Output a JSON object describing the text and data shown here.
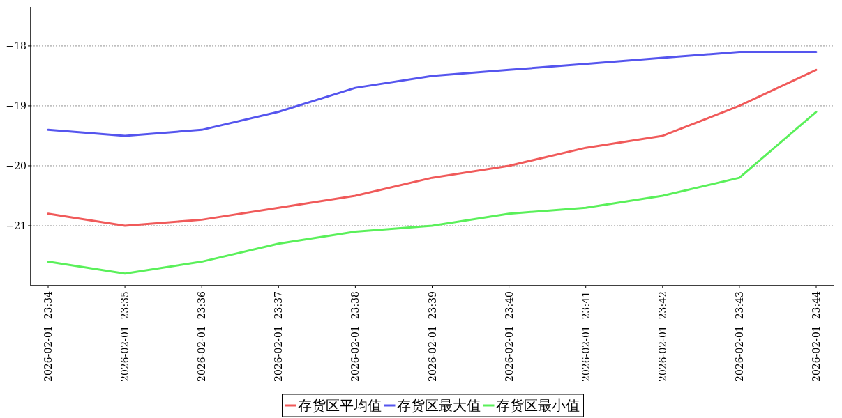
{
  "chart_data": {
    "type": "line",
    "categories": [
      "2026-02-01  23:34",
      "2026-02-01  23:35",
      "2026-02-01  23:36",
      "2026-02-01  23:37",
      "2026-02-01  23:38",
      "2026-02-01  23:39",
      "2026-02-01  23:40",
      "2026-02-01  23:41",
      "2026-02-01  23:42",
      "2026-02-01  23:43",
      "2026-02-01  23:44"
    ],
    "series": [
      {
        "name": "存货区平均值",
        "color": "#f05a5a",
        "values": [
          -20.8,
          -21.0,
          -20.9,
          -20.7,
          -20.5,
          -20.2,
          -20.0,
          -19.7,
          -19.5,
          -19.0,
          -18.4
        ]
      },
      {
        "name": "存货区最大值",
        "color": "#5555ee",
        "values": [
          -19.4,
          -19.5,
          -19.4,
          -19.1,
          -18.7,
          -18.5,
          -18.4,
          -18.3,
          -18.2,
          -18.1,
          -18.1
        ]
      },
      {
        "name": "存货区最小值",
        "color": "#5af05a",
        "values": [
          -21.6,
          -21.8,
          -21.6,
          -21.3,
          -21.1,
          -21.0,
          -20.8,
          -20.7,
          -20.5,
          -20.2,
          -19.1
        ]
      }
    ],
    "ylim": [
      -22.0,
      -17.35
    ],
    "yticks": [
      -21,
      -20,
      -19,
      -18
    ],
    "grid": "y",
    "legend": "bottom",
    "marker": "none",
    "line_style": "solid"
  }
}
